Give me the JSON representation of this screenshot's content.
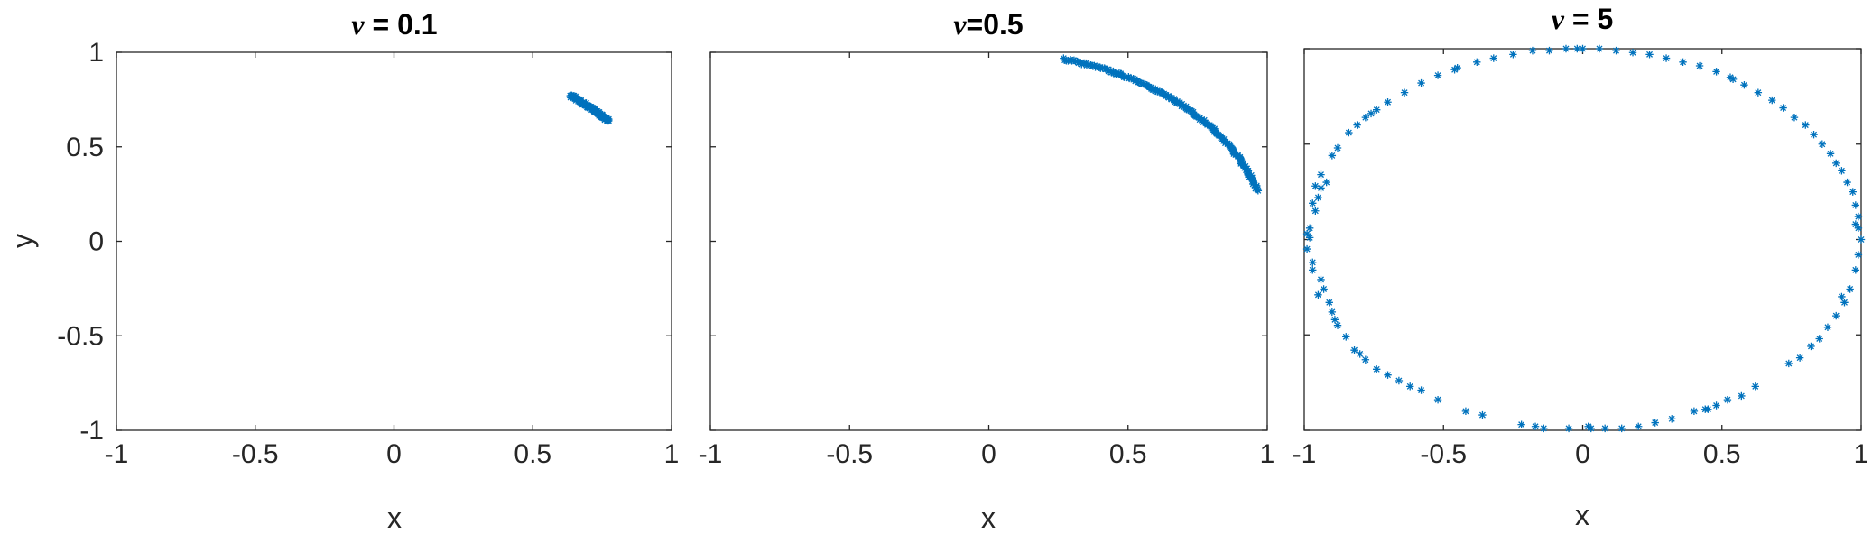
{
  "marker_color": "#0072BD",
  "chart_data": [
    {
      "type": "scatter",
      "title": {
        "symbol": "ν",
        "rest": " = 0.1"
      },
      "xlabel": "x",
      "ylabel": "y",
      "xlim": [
        -1,
        1
      ],
      "ylim": [
        -1,
        1
      ],
      "xticks": [
        -1,
        -0.5,
        0,
        0.5,
        1
      ],
      "yticks": [
        -1,
        -0.5,
        0,
        0.5,
        1
      ],
      "xtick_labels": [
        "-1",
        "-0.5",
        "0",
        "0.5",
        "1"
      ],
      "ytick_labels": [
        "-1",
        "-0.5",
        "0",
        "0.5",
        "1"
      ],
      "marker": "*",
      "arc": {
        "radius": 1,
        "theta_start_deg": 39.5,
        "theta_end_deg": 50.5,
        "count": 90,
        "jitter": 0.008
      },
      "points": []
    },
    {
      "type": "scatter",
      "title": {
        "symbol": "ν",
        "rest": "=0.5"
      },
      "xlabel": "x",
      "ylabel": "",
      "xlim": [
        -1,
        1
      ],
      "ylim": [
        -1,
        1
      ],
      "xticks": [
        -1,
        -0.5,
        0,
        0.5,
        1
      ],
      "yticks": [
        -1,
        -0.5,
        0,
        0.5,
        1
      ],
      "xtick_labels": [
        "-1",
        "-0.5",
        "0",
        "0.5",
        "1"
      ],
      "ytick_labels": [],
      "marker": "*",
      "arc": {
        "radius": 1,
        "theta_start_deg": 15.5,
        "theta_end_deg": 74.5,
        "count": 160,
        "jitter": 0.006
      },
      "points": []
    },
    {
      "type": "scatter",
      "title": {
        "symbol": "ν",
        "rest": " = 5"
      },
      "xlabel": "x",
      "ylabel": "",
      "xlim": [
        -1,
        1
      ],
      "ylim": [
        -1,
        1
      ],
      "xticks": [
        -1,
        -0.5,
        0,
        0.5,
        1
      ],
      "yticks": [
        -1,
        -0.5,
        0,
        0.5,
        1
      ],
      "xtick_labels": [
        "-1",
        "-0.5",
        "0",
        "0.5",
        "1"
      ],
      "ytick_labels": [],
      "marker": "*",
      "arc": null,
      "points": [
        [
          -0.98,
          0.01
        ],
        [
          -0.99,
          -0.05
        ],
        [
          -0.98,
          0.06
        ],
        [
          -0.97,
          -0.12
        ],
        [
          -0.96,
          0.15
        ],
        [
          -0.95,
          0.22
        ],
        [
          -0.94,
          0.27
        ],
        [
          -0.94,
          -0.21
        ],
        [
          -0.93,
          -0.26
        ],
        [
          -0.92,
          0.3
        ],
        [
          -0.91,
          -0.33
        ],
        [
          -0.9,
          -0.38
        ],
        [
          -0.88,
          -0.45
        ],
        [
          -0.85,
          -0.51
        ],
        [
          -0.82,
          -0.58
        ],
        [
          -0.78,
          -0.63
        ],
        [
          -0.74,
          -0.68
        ],
        [
          -0.7,
          -0.71
        ],
        [
          -0.66,
          -0.74
        ],
        [
          -0.62,
          -0.77
        ],
        [
          -0.58,
          -0.79
        ],
        [
          -0.52,
          -0.84
        ],
        [
          -0.42,
          -0.9
        ],
        [
          -0.22,
          -0.97
        ],
        [
          -0.17,
          -0.98
        ],
        [
          -0.14,
          -0.99
        ],
        [
          -0.05,
          -0.99
        ],
        [
          0.03,
          -0.99
        ],
        [
          0.08,
          -0.99
        ],
        [
          0.14,
          -0.99
        ],
        [
          0.2,
          -0.98
        ],
        [
          0.26,
          -0.96
        ],
        [
          0.32,
          -0.94
        ],
        [
          0.4,
          -0.9
        ],
        [
          0.44,
          -0.89
        ],
        [
          0.48,
          -0.87
        ],
        [
          0.52,
          -0.84
        ],
        [
          0.57,
          -0.82
        ],
        [
          0.62,
          -0.77
        ],
        [
          0.78,
          -0.62
        ],
        [
          0.82,
          -0.56
        ],
        [
          0.85,
          -0.52
        ],
        [
          0.88,
          -0.46
        ],
        [
          0.91,
          -0.4
        ],
        [
          0.94,
          -0.33
        ],
        [
          0.96,
          -0.26
        ],
        [
          0.98,
          -0.16
        ],
        [
          0.99,
          -0.08
        ],
        [
          1.0,
          0.0
        ],
        [
          0.99,
          0.06
        ],
        [
          0.99,
          0.12
        ],
        [
          0.98,
          0.18
        ],
        [
          0.97,
          0.25
        ],
        [
          0.95,
          0.3
        ],
        [
          0.93,
          0.36
        ],
        [
          0.91,
          0.4
        ],
        [
          0.89,
          0.45
        ],
        [
          0.86,
          0.5
        ],
        [
          0.83,
          0.55
        ],
        [
          0.8,
          0.6
        ],
        [
          0.76,
          0.64
        ],
        [
          0.72,
          0.69
        ],
        [
          0.68,
          0.73
        ],
        [
          0.63,
          0.77
        ],
        [
          0.58,
          0.81
        ],
        [
          0.53,
          0.85
        ],
        [
          0.48,
          0.88
        ],
        [
          0.42,
          0.91
        ],
        [
          0.36,
          0.93
        ],
        [
          0.3,
          0.95
        ],
        [
          0.24,
          0.97
        ],
        [
          0.18,
          0.98
        ],
        [
          0.12,
          0.99
        ],
        [
          0.06,
          1.0
        ],
        [
          0.0,
          1.0
        ],
        [
          -0.06,
          1.0
        ],
        [
          -0.12,
          0.99
        ],
        [
          -0.18,
          0.99
        ],
        [
          -0.25,
          0.97
        ],
        [
          -0.32,
          0.95
        ],
        [
          -0.38,
          0.93
        ],
        [
          -0.45,
          0.9
        ],
        [
          -0.52,
          0.86
        ],
        [
          -0.58,
          0.82
        ],
        [
          -0.64,
          0.77
        ],
        [
          -0.7,
          0.72
        ],
        [
          -0.74,
          0.68
        ],
        [
          -0.78,
          0.64
        ],
        [
          -0.81,
          0.6
        ],
        [
          -0.84,
          0.56
        ],
        [
          -0.88,
          0.48
        ],
        [
          -0.9,
          0.44
        ],
        [
          -0.94,
          0.34
        ],
        [
          -0.96,
          0.28
        ],
        [
          -0.97,
          0.19
        ],
        [
          -0.97,
          -0.16
        ],
        [
          -0.95,
          -0.29
        ],
        [
          -0.89,
          -0.42
        ],
        [
          -0.8,
          -0.6
        ],
        [
          -0.36,
          -0.92
        ],
        [
          0.02,
          -0.98
        ],
        [
          0.45,
          -0.89
        ],
        [
          0.93,
          -0.3
        ],
        [
          0.98,
          0.08
        ],
        [
          0.54,
          0.84
        ],
        [
          -0.02,
          1.0
        ],
        [
          -0.46,
          0.89
        ],
        [
          -0.76,
          0.66
        ],
        [
          -0.99,
          0.03
        ],
        [
          0.74,
          -0.65
        ]
      ]
    }
  ]
}
